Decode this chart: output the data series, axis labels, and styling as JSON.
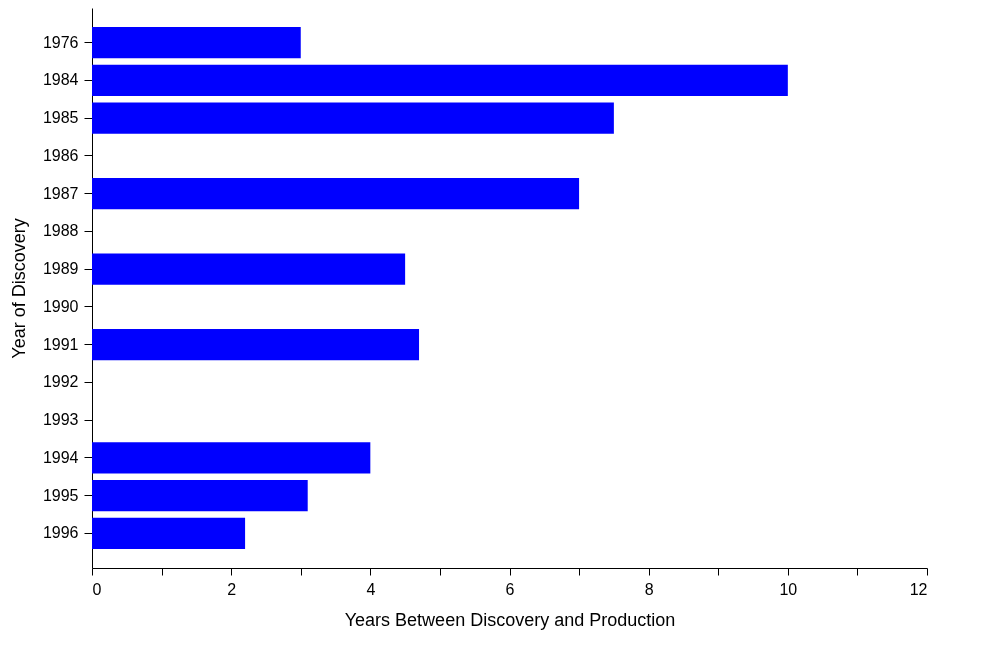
{
  "chart_data": {
    "type": "bar",
    "orientation": "horizontal",
    "xlabel": "Years Between Discovery and Production",
    "ylabel": "Year of Discovery",
    "categories": [
      "1976",
      "1984",
      "1985",
      "1986",
      "1987",
      "1988",
      "1989",
      "1990",
      "1991",
      "1992",
      "1993",
      "1994",
      "1995",
      "1996"
    ],
    "values": [
      3.0,
      10.0,
      7.5,
      null,
      7.0,
      null,
      4.5,
      null,
      4.7,
      null,
      null,
      4.0,
      3.1,
      2.2
    ],
    "color": "#0000ff",
    "xlim": [
      0,
      12
    ],
    "xticks": [
      0,
      {
        "value": 1,
        "label": null
      },
      2,
      {
        "value": 3,
        "label": null
      },
      4,
      {
        "value": 5,
        "label": null
      },
      6,
      {
        "value": 7,
        "label": null
      },
      8,
      {
        "value": 9,
        "label": null
      },
      10,
      {
        "value": 11,
        "label": null
      },
      12
    ],
    "grid": false
  }
}
